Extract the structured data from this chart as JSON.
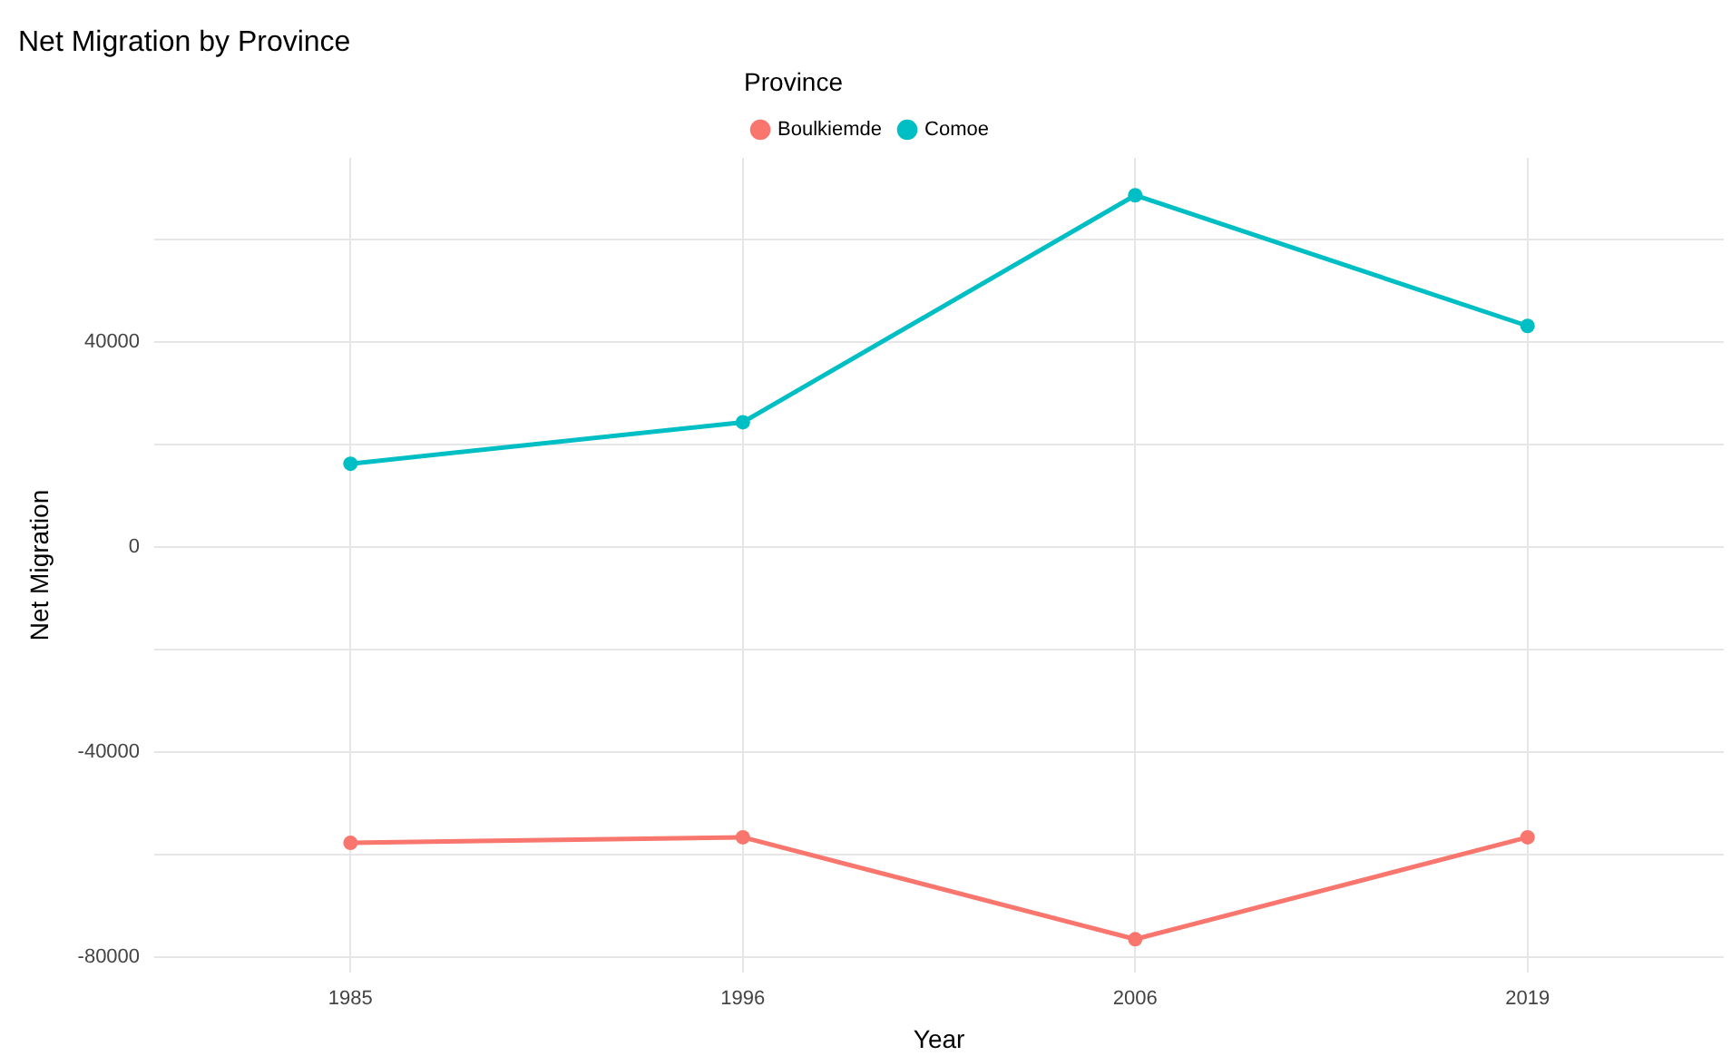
{
  "chart_data": {
    "type": "line",
    "title": "Net Migration by Province",
    "xlabel": "Year",
    "ylabel": "Net Migration",
    "legend_title": "Province",
    "legend": "top",
    "grid": true,
    "marker": "circle",
    "line_style": "solid",
    "categories": [
      "1985",
      "1996",
      "2006",
      "2019"
    ],
    "ylim": [
      -83000,
      76000
    ],
    "yticks": [
      {
        "value": -80000,
        "label": "-80000"
      },
      {
        "value": -60000,
        "label": null
      },
      {
        "value": -40000,
        "label": "-40000"
      },
      {
        "value": -20000,
        "label": null
      },
      0,
      {
        "value": 20000,
        "label": null
      },
      40000,
      {
        "value": 60000,
        "label": null
      }
    ],
    "series": [
      {
        "name": "Boulkiemde",
        "color": "#f8766d",
        "values": [
          -57700,
          -56600,
          -76500,
          -56600
        ]
      },
      {
        "name": "Comoe",
        "color": "#00bfc4",
        "values": [
          16300,
          24400,
          68700,
          43200
        ]
      }
    ]
  }
}
